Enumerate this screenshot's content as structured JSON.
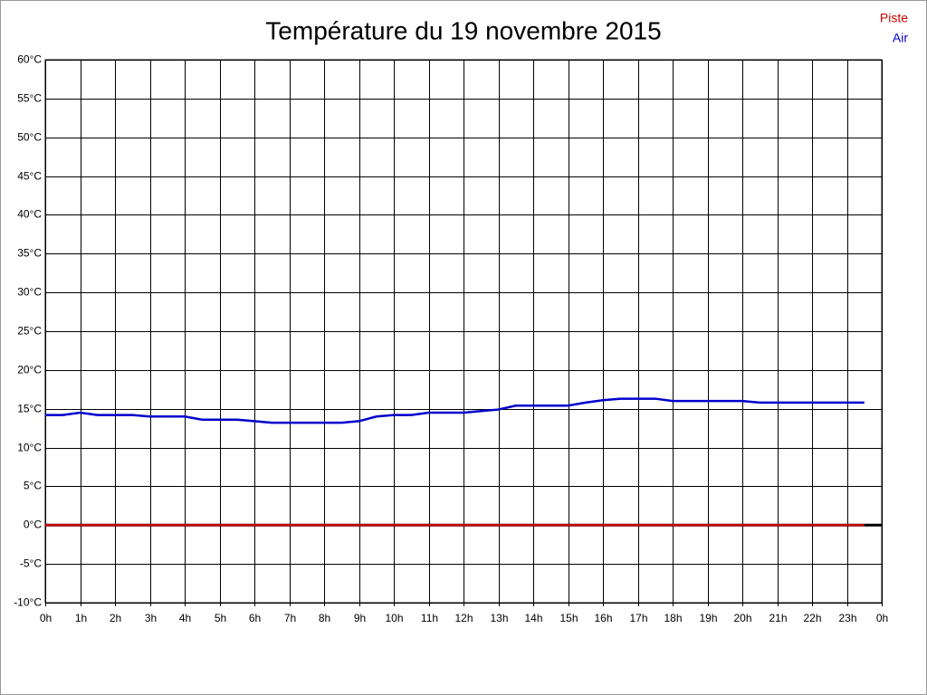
{
  "chart_data": {
    "type": "line",
    "title": "Température du 19 novembre 2015",
    "x": [
      0,
      0.5,
      1,
      1.5,
      2,
      2.5,
      3,
      3.5,
      4,
      4.5,
      5,
      5.5,
      6,
      6.5,
      7,
      7.5,
      8,
      8.5,
      9,
      9.5,
      10,
      10.5,
      11,
      11.5,
      12,
      12.5,
      13,
      13.5,
      14,
      14.5,
      15,
      15.5,
      16,
      16.5,
      17,
      17.5,
      18,
      18.5,
      19,
      19.5,
      20,
      20.5,
      21,
      21.5,
      22,
      22.5,
      23,
      23.5
    ],
    "series": [
      {
        "name": "Piste",
        "color": "#cc0000",
        "values": [
          0,
          0,
          0,
          0,
          0,
          0,
          0,
          0,
          0,
          0,
          0,
          0,
          0,
          0,
          0,
          0,
          0,
          0,
          0,
          0,
          0,
          0,
          0,
          0,
          0,
          0,
          0,
          0,
          0,
          0,
          0,
          0,
          0,
          0,
          0,
          0,
          0,
          0,
          0,
          0,
          0,
          0,
          0,
          0,
          0,
          0,
          0,
          0
        ]
      },
      {
        "name": "Air",
        "color": "#0000cc",
        "values": [
          14.2,
          14.2,
          14.5,
          14.2,
          14.2,
          14.2,
          14.0,
          14.0,
          14.0,
          13.6,
          13.6,
          13.6,
          13.4,
          13.2,
          13.2,
          13.2,
          13.2,
          13.2,
          13.4,
          14.0,
          14.2,
          14.2,
          14.5,
          14.5,
          14.5,
          14.7,
          14.9,
          15.4,
          15.4,
          15.4,
          15.4,
          15.8,
          16.1,
          16.3,
          16.3,
          16.3,
          16.0,
          16.0,
          16.0,
          16.0,
          16.0,
          15.8,
          15.8,
          15.8,
          15.8,
          15.8,
          15.8,
          15.8
        ]
      }
    ],
    "xlim": [
      0,
      24
    ],
    "xticks": [
      {
        "value": 0,
        "label": "0h"
      },
      {
        "value": 1,
        "label": "1h"
      },
      {
        "value": 2,
        "label": "2h"
      },
      {
        "value": 3,
        "label": "3h"
      },
      {
        "value": 4,
        "label": "4h"
      },
      {
        "value": 5,
        "label": "5h"
      },
      {
        "value": 6,
        "label": "6h"
      },
      {
        "value": 7,
        "label": "7h"
      },
      {
        "value": 8,
        "label": "8h"
      },
      {
        "value": 9,
        "label": "9h"
      },
      {
        "value": 10,
        "label": "10h"
      },
      {
        "value": 11,
        "label": "11h"
      },
      {
        "value": 12,
        "label": "12h"
      },
      {
        "value": 13,
        "label": "13h"
      },
      {
        "value": 14,
        "label": "14h"
      },
      {
        "value": 15,
        "label": "15h"
      },
      {
        "value": 16,
        "label": "16h"
      },
      {
        "value": 17,
        "label": "17h"
      },
      {
        "value": 18,
        "label": "18h"
      },
      {
        "value": 19,
        "label": "19h"
      },
      {
        "value": 20,
        "label": "20h"
      },
      {
        "value": 21,
        "label": "21h"
      },
      {
        "value": 22,
        "label": "22h"
      },
      {
        "value": 23,
        "label": "23h"
      },
      {
        "value": 24,
        "label": "0h"
      }
    ],
    "ylim": [
      -10,
      60
    ],
    "yticks": [
      {
        "value": 60,
        "label": "60°C"
      },
      {
        "value": 55,
        "label": "55°C"
      },
      {
        "value": 50,
        "label": "50°C"
      },
      {
        "value": 45,
        "label": "45°C"
      },
      {
        "value": 40,
        "label": "40°C"
      },
      {
        "value": 35,
        "label": "35°C"
      },
      {
        "value": 30,
        "label": "30°C"
      },
      {
        "value": 25,
        "label": "25°C"
      },
      {
        "value": 20,
        "label": "20°C"
      },
      {
        "value": 15,
        "label": "15°C"
      },
      {
        "value": 10,
        "label": "10°C"
      },
      {
        "value": 5,
        "label": "5°C"
      },
      {
        "value": 0,
        "label": "0°C"
      },
      {
        "value": -5,
        "label": "-5°C"
      },
      {
        "value": -10,
        "label": "-10°C"
      }
    ],
    "grid": true,
    "legend": "top-right"
  }
}
